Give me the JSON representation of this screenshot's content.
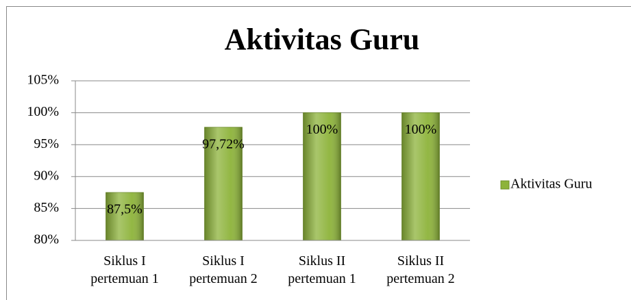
{
  "chart_data": {
    "type": "bar",
    "title": "Aktivitas Guru",
    "categories": [
      "Siklus I pertemuan 1",
      "Siklus I pertemuan 2",
      "Siklus II pertemuan 1",
      "Siklus II pertemuan 2"
    ],
    "series": [
      {
        "name": "Aktivitas Guru",
        "color": "#8db33a",
        "values": [
          87.5,
          97.72,
          100,
          100
        ],
        "value_labels": [
          "87,5%",
          "97,72%",
          "100%",
          "100%"
        ]
      }
    ],
    "ylim": [
      80,
      105
    ],
    "yticks": [
      {
        "value": 80,
        "label": "80%"
      },
      {
        "value": 85,
        "label": "85%"
      },
      {
        "value": 90,
        "label": "90%"
      },
      {
        "value": 95,
        "label": "95%"
      },
      {
        "value": 100,
        "label": "100%"
      },
      {
        "value": 105,
        "label": "105%"
      }
    ],
    "grid": true,
    "legend": "right"
  }
}
